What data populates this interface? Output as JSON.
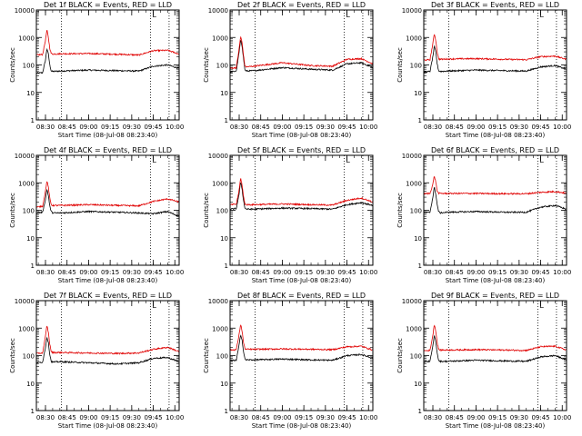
{
  "y_ticks": [
    "1",
    "10",
    "100",
    "1000",
    "10000"
  ],
  "x_ticks": [
    "08:30",
    "08:45",
    "09:00",
    "09:15",
    "09:30",
    "09:45",
    "10:00"
  ],
  "xlabel": "Start Time (08-Jul-08 08:23:40)",
  "ylabel": "Counts/sec",
  "colors": {
    "events": "#000000",
    "lld": "#e00000"
  },
  "chart_data": [
    {
      "type": "line",
      "title": "Det 1f BLACK = Events, RED = LLD",
      "marker": "L",
      "x_range": [
        "08:23:40",
        "10:03:00"
      ],
      "ylim": [
        1,
        10000
      ],
      "yscale": "log",
      "vlines": [
        "08:41:00",
        "09:43:00",
        "09:56:00"
      ],
      "x": [
        "08:23:40",
        "08:28:00",
        "08:30:00",
        "08:31:00",
        "08:32:00",
        "08:33:00",
        "08:34:00",
        "08:35:00",
        "08:40:00",
        "09:00:00",
        "09:20:00",
        "09:35:00",
        "09:45:00",
        "09:55:00",
        "10:03:00"
      ],
      "series": [
        {
          "name": "Events",
          "values": [
            50,
            52,
            150,
            400,
            250,
            100,
            60,
            58,
            60,
            65,
            62,
            60,
            90,
            100,
            75
          ]
        },
        {
          "name": "LLD",
          "values": [
            230,
            240,
            800,
            1900,
            1000,
            400,
            260,
            250,
            255,
            260,
            245,
            230,
            330,
            340,
            250
          ]
        }
      ]
    },
    {
      "type": "line",
      "title": "Det 2f BLACK = Events, RED = LLD",
      "marker": "L",
      "x_range": [
        "08:23:40",
        "10:03:00"
      ],
      "ylim": [
        1,
        10000
      ],
      "yscale": "log",
      "vlines": [
        "08:41:00",
        "09:43:00",
        "09:56:00"
      ],
      "x": [
        "08:23:40",
        "08:28:00",
        "08:30:00",
        "08:31:00",
        "08:32:00",
        "08:33:00",
        "08:34:00",
        "08:35:00",
        "08:40:00",
        "09:00:00",
        "09:20:00",
        "09:35:00",
        "09:45:00",
        "09:55:00",
        "10:03:00"
      ],
      "series": [
        {
          "name": "Events",
          "values": [
            55,
            60,
            300,
            800,
            500,
            180,
            65,
            60,
            62,
            80,
            70,
            65,
            110,
            120,
            80
          ]
        },
        {
          "name": "LLD",
          "values": [
            75,
            80,
            400,
            1100,
            650,
            230,
            90,
            85,
            90,
            120,
            95,
            90,
            160,
            170,
            110
          ]
        }
      ]
    },
    {
      "type": "line",
      "title": "Det 3f BLACK = Events, RED = LLD",
      "marker": "L",
      "x_range": [
        "08:23:40",
        "10:03:00"
      ],
      "ylim": [
        1,
        10000
      ],
      "yscale": "log",
      "vlines": [
        "08:41:00",
        "09:43:00",
        "09:56:00"
      ],
      "x": [
        "08:23:40",
        "08:28:00",
        "08:30:00",
        "08:31:00",
        "08:32:00",
        "08:33:00",
        "08:34:00",
        "08:35:00",
        "08:40:00",
        "09:00:00",
        "09:20:00",
        "09:35:00",
        "09:45:00",
        "09:55:00",
        "10:03:00"
      ],
      "series": [
        {
          "name": "Events",
          "values": [
            55,
            58,
            200,
            480,
            300,
            110,
            62,
            58,
            60,
            65,
            62,
            60,
            85,
            95,
            70
          ]
        },
        {
          "name": "LLD",
          "values": [
            150,
            155,
            600,
            1400,
            800,
            300,
            170,
            160,
            165,
            170,
            160,
            155,
            200,
            210,
            160
          ]
        }
      ]
    },
    {
      "type": "line",
      "title": "Det 4f BLACK = Events, RED = LLD",
      "marker": "L",
      "x_range": [
        "08:23:40",
        "10:03:00"
      ],
      "ylim": [
        1,
        10000
      ],
      "yscale": "log",
      "vlines": [
        "08:41:00",
        "09:43:00",
        "09:56:00"
      ],
      "x": [
        "08:23:40",
        "08:28:00",
        "08:30:00",
        "08:31:00",
        "08:32:00",
        "08:33:00",
        "08:34:00",
        "08:35:00",
        "08:40:00",
        "09:00:00",
        "09:20:00",
        "09:35:00",
        "09:45:00",
        "09:55:00",
        "10:03:00"
      ],
      "series": [
        {
          "name": "Events",
          "values": [
            80,
            85,
            250,
            600,
            350,
            140,
            90,
            80,
            80,
            90,
            85,
            80,
            75,
            90,
            60
          ]
        },
        {
          "name": "LLD",
          "values": [
            130,
            140,
            500,
            1200,
            700,
            270,
            160,
            150,
            150,
            160,
            150,
            145,
            210,
            260,
            200
          ]
        }
      ]
    },
    {
      "type": "line",
      "title": "Det 5f BLACK = Events, RED = LLD",
      "marker": "L",
      "x_range": [
        "08:23:40",
        "10:03:00"
      ],
      "ylim": [
        1,
        10000
      ],
      "yscale": "log",
      "vlines": [
        "08:41:00",
        "09:43:00",
        "09:56:00"
      ],
      "x": [
        "08:23:40",
        "08:28:00",
        "08:30:00",
        "08:31:00",
        "08:32:00",
        "08:33:00",
        "08:34:00",
        "08:35:00",
        "08:40:00",
        "09:00:00",
        "09:20:00",
        "09:35:00",
        "09:45:00",
        "09:55:00",
        "10:03:00"
      ],
      "series": [
        {
          "name": "Events",
          "values": [
            110,
            115,
            400,
            1100,
            600,
            230,
            120,
            110,
            110,
            120,
            115,
            110,
            160,
            190,
            150
          ]
        },
        {
          "name": "LLD",
          "values": [
            160,
            165,
            550,
            1500,
            850,
            320,
            170,
            160,
            160,
            170,
            160,
            155,
            230,
            280,
            200
          ]
        }
      ]
    },
    {
      "type": "line",
      "title": "Det 6f BLACK = Events, RED = LLD",
      "marker": "L",
      "x_range": [
        "08:23:40",
        "10:03:00"
      ],
      "ylim": [
        1,
        10000
      ],
      "yscale": "log",
      "vlines": [
        "08:41:00",
        "09:43:00",
        "09:56:00"
      ],
      "x": [
        "08:23:40",
        "08:28:00",
        "08:30:00",
        "08:31:00",
        "08:32:00",
        "08:33:00",
        "08:34:00",
        "08:35:00",
        "08:40:00",
        "09:00:00",
        "09:20:00",
        "09:35:00",
        "09:45:00",
        "09:55:00",
        "10:03:00"
      ],
      "series": [
        {
          "name": "Events",
          "values": [
            80,
            85,
            300,
            700,
            400,
            160,
            90,
            80,
            85,
            90,
            85,
            85,
            130,
            150,
            110
          ]
        },
        {
          "name": "LLD",
          "values": [
            400,
            410,
            900,
            1800,
            1100,
            500,
            420,
            410,
            410,
            410,
            400,
            400,
            450,
            480,
            420
          ]
        }
      ]
    },
    {
      "type": "line",
      "title": "Det 7f BLACK = Events, RED = LLD",
      "marker": "L",
      "x_range": [
        "08:23:40",
        "10:03:00"
      ],
      "ylim": [
        1,
        10000
      ],
      "yscale": "log",
      "vlines": [
        "08:41:00",
        "09:43:00",
        "09:56:00"
      ],
      "x": [
        "08:23:40",
        "08:28:00",
        "08:30:00",
        "08:31:00",
        "08:32:00",
        "08:33:00",
        "08:34:00",
        "08:35:00",
        "08:40:00",
        "09:00:00",
        "09:20:00",
        "09:35:00",
        "09:45:00",
        "09:55:00",
        "10:03:00"
      ],
      "series": [
        {
          "name": "Events",
          "values": [
            55,
            58,
            200,
            480,
            300,
            110,
            62,
            58,
            60,
            55,
            50,
            55,
            80,
            85,
            60
          ]
        },
        {
          "name": "LLD",
          "values": [
            120,
            125,
            500,
            1300,
            700,
            260,
            140,
            130,
            130,
            125,
            120,
            125,
            170,
            200,
            140
          ]
        }
      ]
    },
    {
      "type": "line",
      "title": "Det 8f BLACK = Events, RED = LLD",
      "marker": "L",
      "x_range": [
        "08:23:40",
        "10:03:00"
      ],
      "ylim": [
        1,
        10000
      ],
      "yscale": "log",
      "vlines": [
        "08:41:00",
        "09:43:00",
        "09:56:00"
      ],
      "x": [
        "08:23:40",
        "08:28:00",
        "08:30:00",
        "08:31:00",
        "08:32:00",
        "08:33:00",
        "08:34:00",
        "08:35:00",
        "08:40:00",
        "09:00:00",
        "09:20:00",
        "09:35:00",
        "09:45:00",
        "09:55:00",
        "10:03:00"
      ],
      "series": [
        {
          "name": "Events",
          "values": [
            65,
            68,
            250,
            600,
            380,
            140,
            75,
            70,
            70,
            75,
            70,
            68,
            100,
            110,
            80
          ]
        },
        {
          "name": "LLD",
          "values": [
            160,
            165,
            600,
            1400,
            800,
            300,
            180,
            170,
            170,
            175,
            170,
            165,
            210,
            220,
            160
          ]
        }
      ]
    },
    {
      "type": "line",
      "title": "Det 9f BLACK = Events, RED = LLD",
      "marker": "L",
      "x_range": [
        "08:23:40",
        "10:03:00"
      ],
      "ylim": [
        1,
        10000
      ],
      "yscale": "log",
      "vlines": [
        "08:41:00",
        "09:43:00",
        "09:56:00"
      ],
      "x": [
        "08:23:40",
        "08:28:00",
        "08:30:00",
        "08:31:00",
        "08:32:00",
        "08:33:00",
        "08:34:00",
        "08:35:00",
        "08:40:00",
        "09:00:00",
        "09:20:00",
        "09:35:00",
        "09:45:00",
        "09:55:00",
        "10:03:00"
      ],
      "series": [
        {
          "name": "Events",
          "values": [
            60,
            62,
            220,
            550,
            330,
            125,
            68,
            62,
            62,
            68,
            64,
            62,
            90,
            100,
            70
          ]
        },
        {
          "name": "LLD",
          "values": [
            150,
            155,
            550,
            1400,
            800,
            300,
            170,
            160,
            160,
            165,
            160,
            155,
            210,
            220,
            160
          ]
        }
      ]
    }
  ]
}
